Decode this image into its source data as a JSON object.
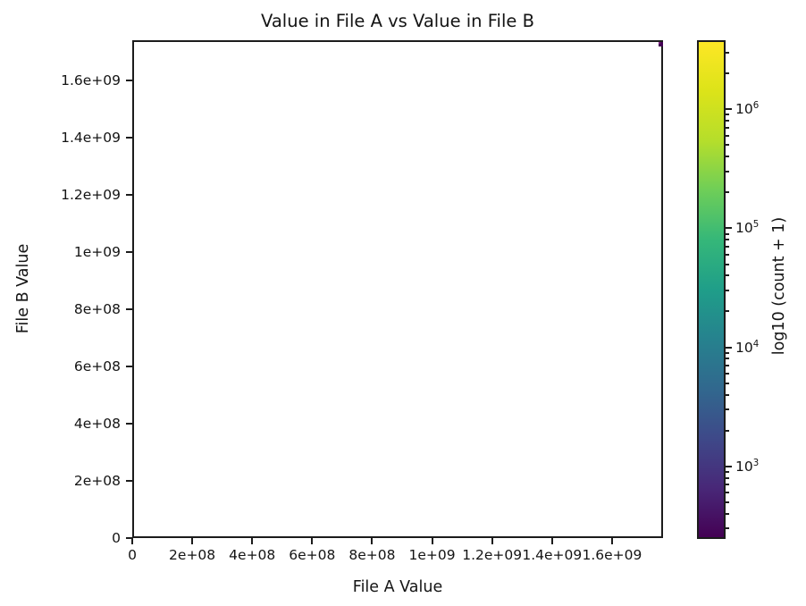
{
  "chart_data": {
    "type": "heatmap",
    "title": "Value in File A vs Value in File B",
    "xlabel": "File A Value",
    "ylabel": "File B Value",
    "grid": false,
    "background": "#ffffff",
    "xlim": [
      0,
      1770000000
    ],
    "ylim": [
      0,
      1741000000
    ],
    "xticks": [
      {
        "value": 0,
        "label": "0"
      },
      {
        "value": 200000000,
        "label": "2e+08"
      },
      {
        "value": 400000000,
        "label": "4e+08"
      },
      {
        "value": 600000000,
        "label": "6e+08"
      },
      {
        "value": 800000000,
        "label": "8e+08"
      },
      {
        "value": 1000000000,
        "label": "1e+09"
      },
      {
        "value": 1200000000,
        "label": "1.2e+09"
      },
      {
        "value": 1400000000,
        "label": "1.4e+09"
      },
      {
        "value": 1600000000,
        "label": "1.6e+09"
      }
    ],
    "yticks": [
      {
        "value": 0,
        "label": "0"
      },
      {
        "value": 200000000,
        "label": "2e+08"
      },
      {
        "value": 400000000,
        "label": "4e+08"
      },
      {
        "value": 600000000,
        "label": "6e+08"
      },
      {
        "value": 800000000,
        "label": "8e+08"
      },
      {
        "value": 1000000000,
        "label": "1e+09"
      },
      {
        "value": 1200000000,
        "label": "1.2e+09"
      },
      {
        "value": 1400000000,
        "label": "1.4e+09"
      },
      {
        "value": 1600000000,
        "label": "1.6e+09"
      }
    ],
    "bins": [
      {
        "x": 1753000000,
        "y": 1741000000,
        "color": "#440154",
        "note": "single small dark-purple low-count bin touching the top-right corner of the axes"
      }
    ],
    "colorbar": {
      "label": "log10 (count + 1)",
      "scale": "log10",
      "colormap": "viridis",
      "log_range": [
        2.42,
        6.58
      ],
      "major_ticks": [
        {
          "value": 1000,
          "base": "10",
          "exp": "3"
        },
        {
          "value": 10000,
          "base": "10",
          "exp": "4"
        },
        {
          "value": 100000,
          "base": "10",
          "exp": "5"
        },
        {
          "value": 1000000,
          "base": "10",
          "exp": "6"
        }
      ],
      "colormap_stops": [
        "#440154",
        "#482878",
        "#3e4989",
        "#31688e",
        "#26828e",
        "#1f9e89",
        "#35b779",
        "#6ece58",
        "#b5de2b",
        "#dce319",
        "#fde725"
      ]
    }
  },
  "colors": {
    "text": "#141414",
    "frame": "#1c1c1c",
    "bin_dark": "#440154",
    "bin_bright": "#7d2482"
  }
}
